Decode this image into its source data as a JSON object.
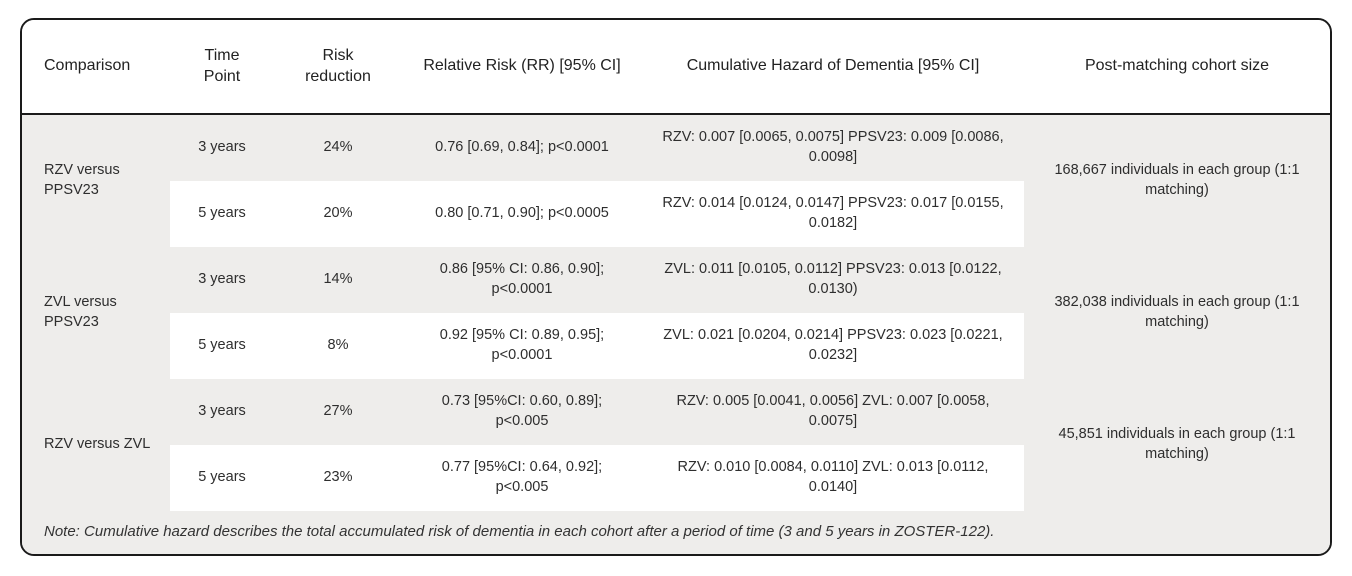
{
  "table": {
    "headers": {
      "comparison": "Comparison",
      "time_point": "Time Point",
      "risk_reduction": "Risk reduction",
      "relative_risk": "Relative Risk (RR) [95% CI]",
      "cumulative_hazard": "Cumulative Hazard of Dementia [95% CI]",
      "cohort_size": "Post-matching cohort size"
    },
    "groups": [
      {
        "comparison": "RZV versus PPSV23",
        "cohort": "168,667 individuals in each group (1:1 matching)",
        "rows": [
          {
            "time": "3 years",
            "risk": "24%",
            "rr": "0.76 [0.69, 0.84]; p<0.0001",
            "hazard": "RZV: 0.007 [0.0065, 0.0075] PPSV23: 0.009 [0.0086, 0.0098]"
          },
          {
            "time": "5 years",
            "risk": "20%",
            "rr": "0.80 [0.71, 0.90]; p<0.0005",
            "hazard": "RZV: 0.014 [0.0124, 0.0147] PPSV23: 0.017 [0.0155, 0.0182]"
          }
        ]
      },
      {
        "comparison": "ZVL versus PPSV23",
        "cohort": "382,038 individuals in each group (1:1 matching)",
        "rows": [
          {
            "time": "3 years",
            "risk": "14%",
            "rr": "0.86 [95% CI: 0.86, 0.90]; p<0.0001",
            "hazard": "ZVL: 0.011 [0.0105, 0.0112] PPSV23: 0.013 [0.0122, 0.0130)"
          },
          {
            "time": "5 years",
            "risk": "8%",
            "rr": "0.92 [95% CI: 0.89, 0.95]; p<0.0001",
            "hazard": "ZVL: 0.021 [0.0204, 0.0214] PPSV23: 0.023 [0.0221, 0.0232]"
          }
        ]
      },
      {
        "comparison": "RZV versus ZVL",
        "cohort": "45,851 individuals in each group (1:1 matching)",
        "rows": [
          {
            "time": "3 years",
            "risk": "27%",
            "rr": "0.73 [95%CI: 0.60, 0.89]; p<0.005",
            "hazard": "RZV: 0.005 [0.0041, 0.0056] ZVL: 0.007 [0.0058, 0.0075]"
          },
          {
            "time": "5 years",
            "risk": "23%",
            "rr": "0.77 [95%CI: 0.64, 0.92]; p<0.005",
            "hazard": "RZV: 0.010 [0.0084, 0.0110] ZVL: 0.013 [0.0112, 0.0140]"
          }
        ]
      }
    ],
    "note": "Note: Cumulative hazard describes the total accumulated risk of dementia in each cohort after a period of time (3 and 5 years in ZOSTER-122).",
    "colors": {
      "row_shade": "#eeedeb",
      "card_border": "#1a1a1a"
    }
  }
}
